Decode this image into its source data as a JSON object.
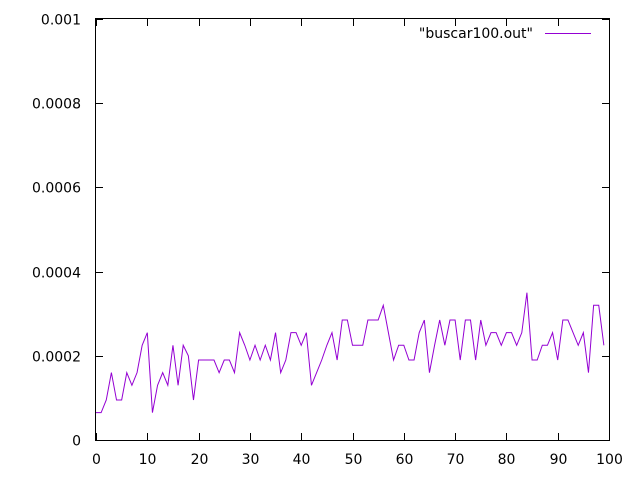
{
  "chart_data": {
    "type": "line",
    "title": "",
    "xlabel": "",
    "ylabel": "",
    "xlim": [
      0,
      100
    ],
    "ylim": [
      0,
      0.001
    ],
    "grid": false,
    "legend_position": "top-right",
    "x_ticks": [
      "0",
      "10",
      "20",
      "30",
      "40",
      "50",
      "60",
      "70",
      "80",
      "90",
      "100"
    ],
    "y_ticks": [
      "0",
      "0.0002",
      "0.0004",
      "0.0006",
      "0.0008",
      "0.001"
    ],
    "series": [
      {
        "name": "\"buscar100.out\"",
        "color": "#9400d3",
        "x": [
          0,
          1,
          2,
          3,
          4,
          5,
          6,
          7,
          8,
          9,
          10,
          11,
          12,
          13,
          14,
          15,
          16,
          17,
          18,
          19,
          20,
          21,
          22,
          23,
          24,
          25,
          26,
          27,
          28,
          29,
          30,
          31,
          32,
          33,
          34,
          35,
          36,
          37,
          38,
          39,
          40,
          41,
          42,
          43,
          44,
          45,
          46,
          47,
          48,
          49,
          50,
          51,
          52,
          53,
          54,
          55,
          56,
          57,
          58,
          59,
          60,
          61,
          62,
          63,
          64,
          65,
          66,
          67,
          68,
          69,
          70,
          71,
          72,
          73,
          74,
          75,
          76,
          77,
          78,
          79,
          80,
          81,
          82,
          83,
          84,
          85,
          86,
          87,
          88,
          89,
          90,
          91,
          92,
          93,
          94,
          95,
          96,
          97,
          98,
          99
        ],
        "y": [
          6.5e-05,
          6.5e-05,
          9.5e-05,
          0.00016,
          9.5e-05,
          9.5e-05,
          0.00016,
          0.00013,
          0.00016,
          0.000225,
          0.000255,
          6.5e-05,
          0.00013,
          0.00016,
          0.00013,
          0.000225,
          0.00013,
          0.000225,
          0.0002,
          9.5e-05,
          0.00019,
          0.00019,
          0.00019,
          0.00019,
          0.00016,
          0.00019,
          0.00019,
          0.00016,
          0.000255,
          0.000225,
          0.00019,
          0.000225,
          0.00019,
          0.000225,
          0.00019,
          0.000255,
          0.00016,
          0.00019,
          0.000255,
          0.000255,
          0.000225,
          0.000255,
          0.00013,
          0.00016,
          0.00019,
          0.000225,
          0.000255,
          0.00019,
          0.000285,
          0.000285,
          0.000225,
          0.000225,
          0.000225,
          0.000285,
          0.000285,
          0.000285,
          0.00032,
          0.000255,
          0.00019,
          0.000225,
          0.000225,
          0.00019,
          0.00019,
          0.000255,
          0.000285,
          0.00016,
          0.000225,
          0.000285,
          0.000225,
          0.000285,
          0.000285,
          0.00019,
          0.000285,
          0.000285,
          0.00019,
          0.000285,
          0.000225,
          0.000255,
          0.000255,
          0.000225,
          0.000255,
          0.000255,
          0.000225,
          0.000255,
          0.00035,
          0.00019,
          0.00019,
          0.000225,
          0.000225,
          0.000255,
          0.00019,
          0.000285,
          0.000285,
          0.000255,
          0.000225,
          0.000255,
          0.00016,
          0.00032,
          0.00032,
          0.000225
        ]
      }
    ]
  }
}
